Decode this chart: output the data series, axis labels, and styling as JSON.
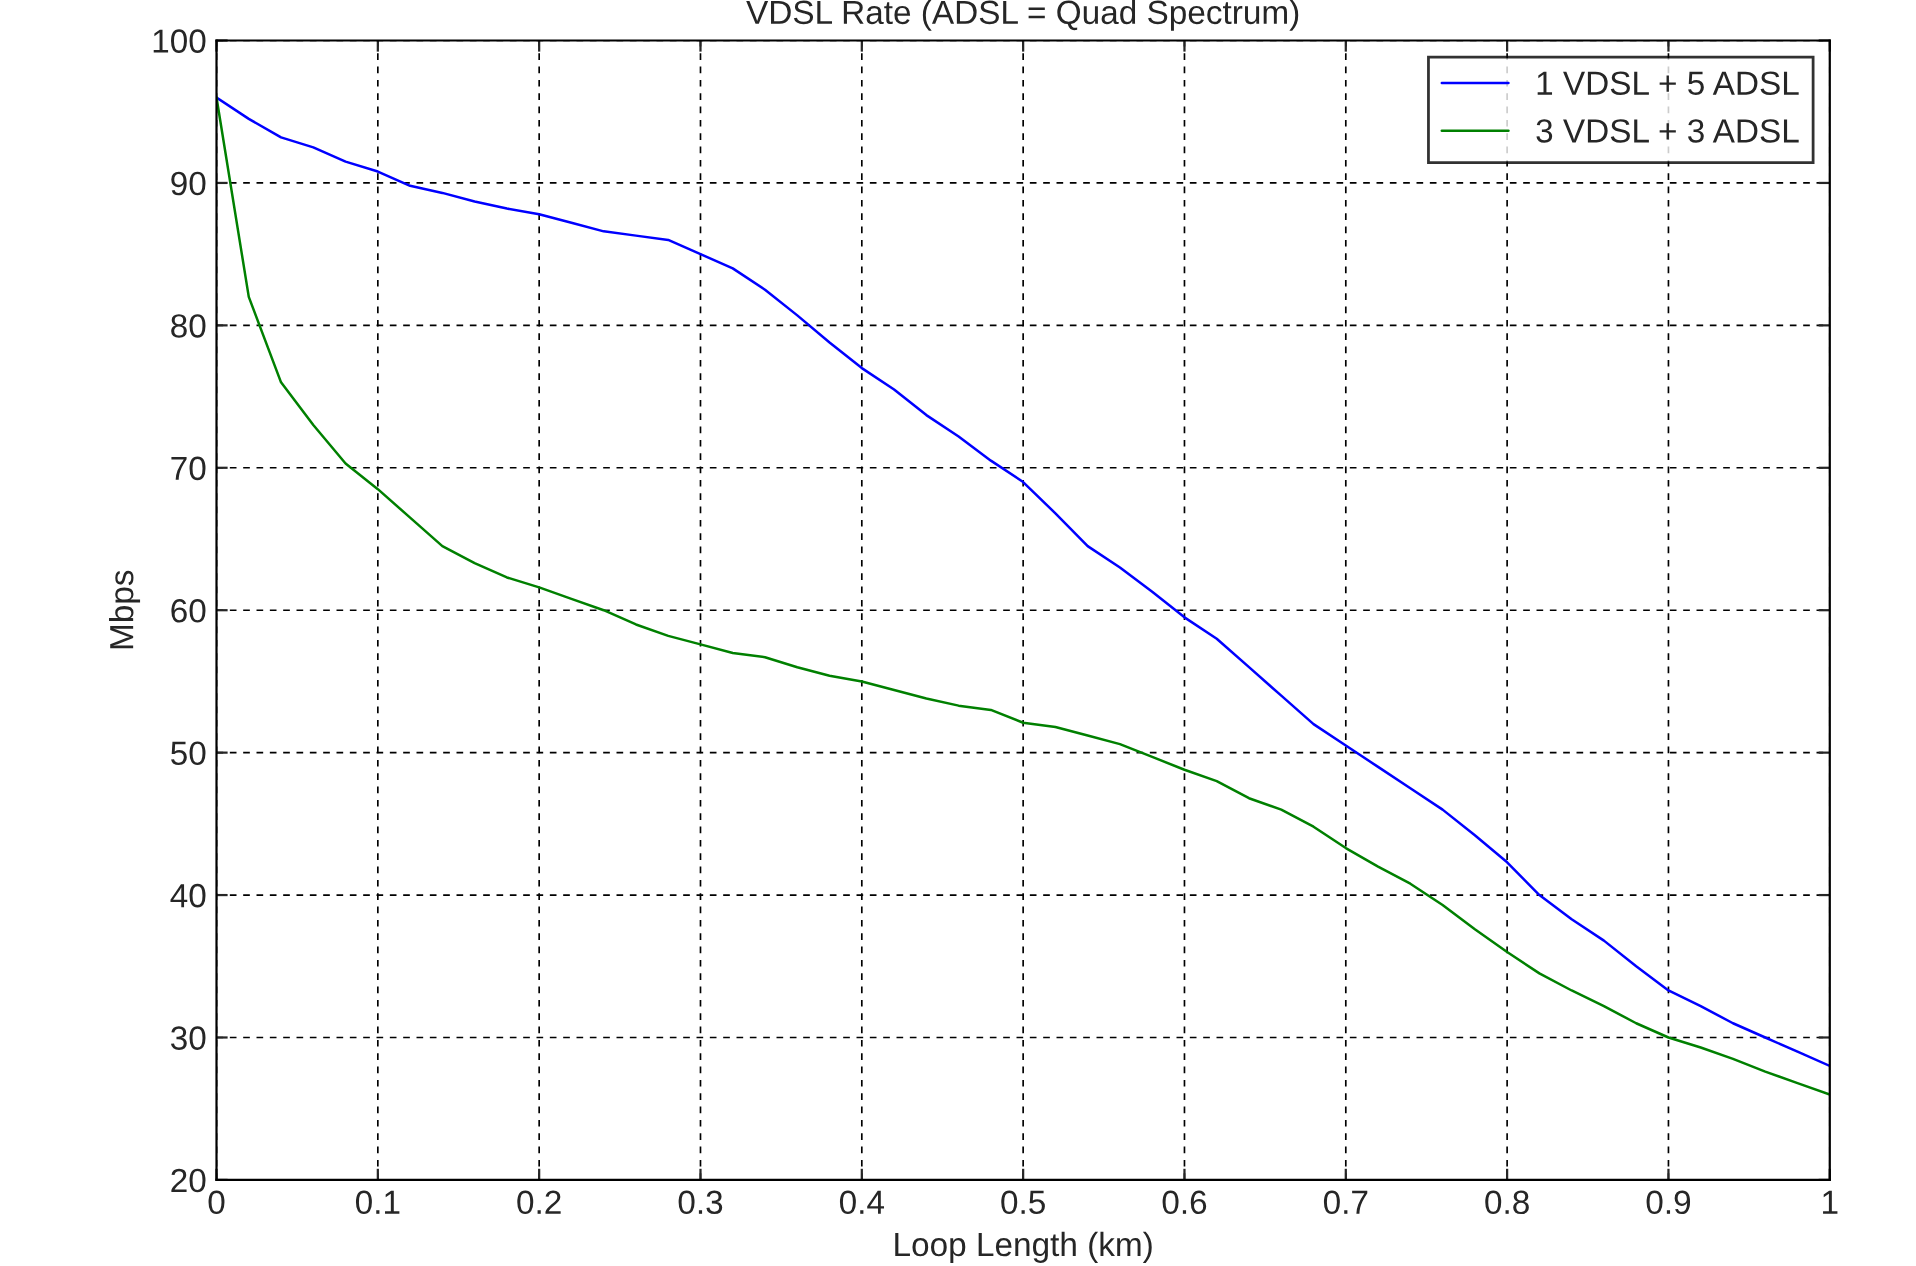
{
  "chart_data": {
    "type": "line",
    "title": "VDSL Rate (ADSL = Quad Spectrum)",
    "xlabel": "Loop Length (km)",
    "ylabel": "Mbps",
    "x": [
      0,
      0.02,
      0.04,
      0.06,
      0.08,
      0.1,
      0.12,
      0.14,
      0.16,
      0.18,
      0.2,
      0.22,
      0.24,
      0.26,
      0.28,
      0.3,
      0.32,
      0.34,
      0.36,
      0.38,
      0.4,
      0.42,
      0.44,
      0.46,
      0.48,
      0.5,
      0.52,
      0.54,
      0.56,
      0.58,
      0.6,
      0.62,
      0.64,
      0.66,
      0.68,
      0.7,
      0.72,
      0.74,
      0.76,
      0.78,
      0.8,
      0.82,
      0.84,
      0.86,
      0.88,
      0.9,
      0.92,
      0.94,
      0.96,
      0.98,
      1
    ],
    "series": [
      {
        "name": "1 VDSL + 5 ADSL",
        "color": "#0000ff",
        "values": [
          96,
          94.5,
          93.2,
          92.5,
          91.5,
          90.8,
          89.8,
          89.3,
          88.7,
          88.2,
          87.8,
          87.2,
          86.6,
          86.3,
          86,
          85,
          84,
          82.5,
          80.7,
          78.8,
          77,
          75.5,
          73.7,
          72.2,
          70.5,
          69,
          66.8,
          64.5,
          63,
          61.3,
          59.5,
          58,
          56,
          54,
          52,
          50.5,
          49,
          47.5,
          46,
          44.2,
          42.3,
          40,
          38.3,
          36.8,
          35,
          33.3,
          32.2,
          31,
          30,
          29,
          28
        ]
      },
      {
        "name": "3 VDSL + 3 ADSL",
        "color": "#008000",
        "values": [
          96,
          82,
          76,
          73,
          70.3,
          68.5,
          66.5,
          64.5,
          63.3,
          62.3,
          61.6,
          60.8,
          60,
          59,
          58.2,
          57.6,
          57,
          56.7,
          56,
          55.4,
          55,
          54.4,
          53.8,
          53.3,
          53,
          52.1,
          51.8,
          51.2,
          50.6,
          49.7,
          48.8,
          48,
          46.8,
          46,
          44.8,
          43.3,
          42,
          40.8,
          39.3,
          37.6,
          36,
          34.5,
          33.3,
          32.2,
          31,
          30,
          29.3,
          28.5,
          27.6,
          26.8,
          26
        ]
      }
    ],
    "xlim": [
      0,
      1
    ],
    "ylim": [
      20,
      100
    ],
    "xticks": [
      0,
      0.1,
      0.2,
      0.3,
      0.4,
      0.5,
      0.6,
      0.7,
      0.8,
      0.9,
      1
    ],
    "yticks": [
      20,
      30,
      40,
      50,
      60,
      70,
      80,
      90,
      100
    ],
    "grid": true,
    "legend": "top right",
    "marker": "none",
    "line_style": "solid"
  }
}
